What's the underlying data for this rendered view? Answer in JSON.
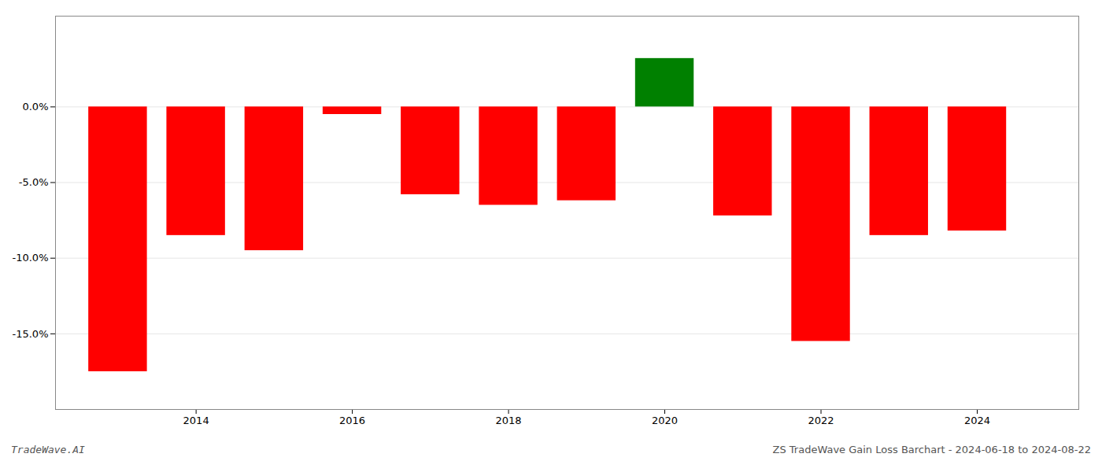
{
  "chart_data": {
    "type": "bar",
    "x": [
      2013,
      2014,
      2015,
      2016,
      2017,
      2018,
      2019,
      2020,
      2021,
      2022,
      2023,
      2024
    ],
    "values": [
      -17.5,
      -8.5,
      -9.5,
      -0.5,
      -5.8,
      -6.5,
      -6.2,
      3.2,
      -7.2,
      -15.5,
      -8.5,
      -8.2
    ],
    "colors": [
      "#ff0000",
      "#ff0000",
      "#ff0000",
      "#ff0000",
      "#ff0000",
      "#ff0000",
      "#ff0000",
      "#008000",
      "#ff0000",
      "#ff0000",
      "#ff0000",
      "#ff0000"
    ],
    "xlim": [
      2012.2,
      2025.3
    ],
    "xticks": [
      2014,
      2016,
      2018,
      2020,
      2022,
      2024
    ],
    "ylim": [
      -20,
      6
    ],
    "yticks": [
      {
        "value": 0.0,
        "label": "0.0%"
      },
      {
        "value": -5.0,
        "label": "-5.0%"
      },
      {
        "value": -10.0,
        "label": "-10.0%"
      },
      {
        "value": -15.0,
        "label": "-15.0%"
      }
    ],
    "grid": true,
    "annotations": [
      "TradeWave.AI",
      "ZS TradeWave Gain Loss Barchart - 2024-06-18 to 2024-08-22"
    ]
  }
}
